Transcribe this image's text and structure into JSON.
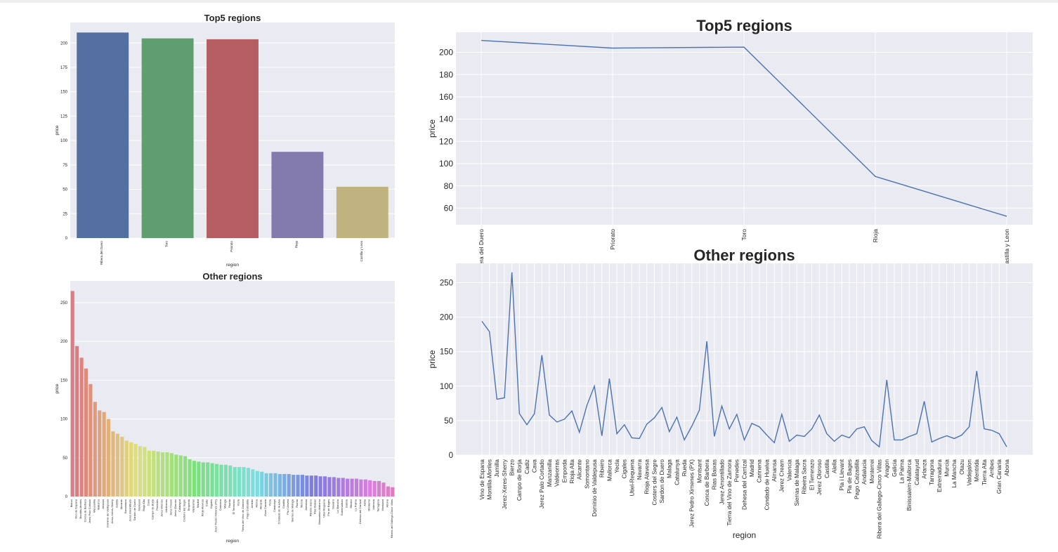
{
  "chart_data": [
    {
      "type": "bar",
      "title": "Top5 regions",
      "xlabel": "region",
      "ylabel": "price",
      "categories": [
        "Ribera del Duero",
        "Toro",
        "Priorato",
        "Rioja",
        "Castilla y Leon"
      ],
      "values": [
        210.7,
        204.7,
        203.8,
        88.4,
        52.6
      ],
      "colors": [
        "#5470a3",
        "#5f9e6e",
        "#b55d60",
        "#837aad",
        "#c1b37f"
      ],
      "yticks": [
        0,
        25,
        50,
        75,
        100,
        125,
        150,
        175,
        200
      ],
      "ylim": [
        0,
        221
      ]
    },
    {
      "type": "line",
      "title": "Top5 regions",
      "xlabel": "",
      "ylabel": "price",
      "categories": [
        "Ribera del Duero",
        "Priorato",
        "Toro",
        "Rioja",
        "Castilla y Leon"
      ],
      "values": [
        210.7,
        203.8,
        204.7,
        88.4,
        52.6
      ],
      "color": "#4c72b0",
      "yticks": [
        60,
        80,
        100,
        120,
        140,
        160,
        180,
        200
      ],
      "ylim": [
        45,
        218
      ]
    },
    {
      "type": "bar",
      "title": "Other regions",
      "xlabel": "region",
      "ylabel": "price",
      "categories": [
        "Bierzo",
        "Vino de Espana",
        "Montilla-Moriles",
        "Conca de Barbera",
        "Jerez Palo Cortado",
        "Manzanilla",
        "Mallorca",
        "Arlanza",
        "Dominio de Valdepusa",
        "Jerez-Xeres-Sherry",
        "Jumilla",
        "Alicante",
        "Somontano",
        "Jerez Amontillado",
        "Sardon de Duero",
        "Montsant",
        "Rioja Alta",
        "Cava",
        "Campo de Borja",
        "Penedes",
        "Jerez Oloroso",
        "Valdeorras",
        "Jerez Cream",
        "Jerez Oloroso",
        "Calatayud",
        "Costers del Segre",
        "Emporda",
        "Valdeorras",
        "Madrid",
        "Rioja Alavesa",
        "Cadiz",
        "Cigales",
        "Jerez Pedro Ximenes (PX)",
        "Carinena",
        "Malaga",
        "Rueda",
        "El Terrerazo",
        "Yecla",
        "Tierra del Vino de Zamora",
        "Pago Calzadilla",
        "Ambito",
        "Abona",
        "Alicante",
        "Gran Canaria",
        "Yecla",
        "Catalunya",
        "Condado de Huelva",
        "Castilla",
        "Pla i Llevant",
        "Sierras de Malaga",
        "Rueda",
        "Murcia",
        "Almansa",
        "Ribeira Sacra",
        "Rias Baixas",
        "Binissalem-Mallorca",
        "Utiel-Requena",
        "Pla de Bages",
        "Navarra",
        "La Mancha",
        "Extremadura",
        "Galicia",
        "Ribeiro",
        "La Palma",
        "Dehesa del Carrizal",
        "Alella",
        "Monterrei",
        "Valencia",
        "Tarragona",
        "Montsant",
        "Abona",
        "Ribera del Gallego-Cinco Villas"
      ],
      "values": [
        265,
        194,
        179,
        165,
        145,
        122,
        111,
        109,
        100,
        84,
        81,
        77,
        72,
        70,
        68,
        65,
        64,
        59,
        59,
        58,
        57,
        57,
        56,
        54,
        53,
        52,
        48,
        46,
        45,
        44,
        44,
        43,
        42,
        41,
        41,
        40,
        38,
        38,
        38,
        37,
        35,
        33,
        32,
        30,
        30,
        30,
        29,
        29,
        29,
        28,
        28,
        28,
        27,
        27,
        27,
        26,
        26,
        25,
        25,
        24,
        24,
        23,
        23,
        23,
        22,
        22,
        21,
        20,
        20,
        18,
        13,
        12
      ],
      "yticks": [
        0,
        50,
        100,
        150,
        200,
        250
      ],
      "ylim": [
        0,
        278
      ]
    },
    {
      "type": "line",
      "title": "Other regions",
      "xlabel": "region",
      "ylabel": "price",
      "categories": [
        "Vino de Espana",
        "Montilla-Moriles",
        "Jumilla",
        "Jerez-Xeres-Sherry",
        "Bierzo",
        "Campo de Borja",
        "Cadiz",
        "Cava",
        "Jerez Palo Cortado",
        "Manzanilla",
        "Valdeorras",
        "Emporda",
        "Rioja Alta",
        "Alicante",
        "Somontano",
        "Dominio de Valdepusa",
        "Ribeiro",
        "Mallorca",
        "Yecla",
        "Cigales",
        "Utiel-Requena",
        "Navarra",
        "Rioja Alavesa",
        "Costers del Segre",
        "Sardon de Duero",
        "Malaga",
        "Catalunya",
        "Rueda",
        "Jerez Pedro Ximenes (PX)",
        "Montsant",
        "Conca de Barbera",
        "Rias Baixas",
        "Jerez Amontillado",
        "Tierra del Vino de Zamora",
        "Penedes",
        "Dehesa del Carrizal",
        "Madrid",
        "Carinena",
        "Condado de Huelva",
        "Almansa",
        "Jerez Cream",
        "Valencia",
        "Sierras de Malaga",
        "Ribeira Sacra",
        "El Terrerazo",
        "Jerez Oloroso",
        "Castilla",
        "Alella",
        "Pla i Llevant",
        "Pla de Bages",
        "Pago Calzadilla",
        "Andalucia",
        "Monterrei",
        "Ribera del Gallego-Cinco Villas",
        "Aragon",
        "Galicia",
        "La Palma",
        "Binissalem-Mallorca",
        "Calatayud",
        "Arlanza",
        "Tarragona",
        "Extremadura",
        "Murcia",
        "La Mancha",
        "Otazu",
        "Valdejalon",
        "Mentrida",
        "Tierra Alta",
        "Arribes",
        "Gran Canaria",
        "Abona"
      ],
      "values": [
        194,
        179,
        81,
        83,
        265,
        60,
        44,
        60,
        145,
        58,
        48,
        52,
        64,
        33,
        72,
        100,
        28,
        111,
        31,
        44,
        25,
        24,
        45,
        54,
        69,
        34,
        55,
        22,
        42,
        65,
        165,
        27,
        71,
        38,
        59,
        22,
        46,
        41,
        29,
        18,
        59,
        20,
        29,
        27,
        38,
        58,
        31,
        20,
        29,
        25,
        38,
        41,
        21,
        12,
        109,
        22,
        22,
        27,
        31,
        78,
        19,
        24,
        28,
        24,
        29,
        41,
        122,
        38,
        36,
        31,
        12
      ],
      "color": "#4c72b0",
      "yticks": [
        0,
        50,
        100,
        150,
        200,
        250
      ],
      "ylim": [
        0,
        278
      ]
    }
  ]
}
